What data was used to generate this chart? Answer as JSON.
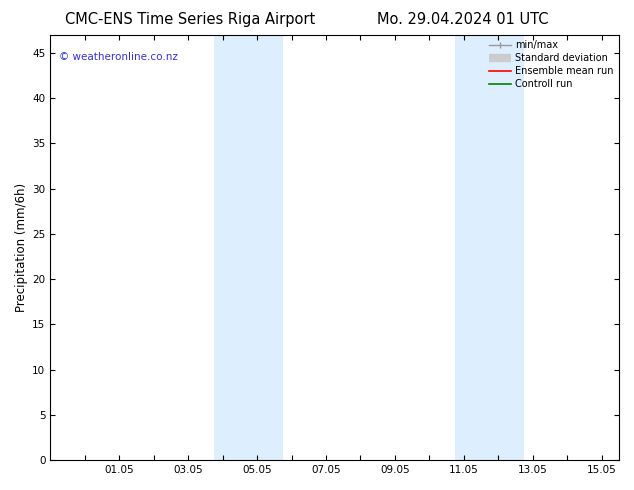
{
  "title_left": "CMC-ENS Time Series Riga Airport",
  "title_right": "Mo. 29.04.2024 01 UTC",
  "ylabel": "Precipitation (mm/6h)",
  "watermark": "© weatheronline.co.nz",
  "watermark_color": "#3333cc",
  "xlim_left": 29.0,
  "xlim_right": 45.5,
  "ylim_bottom": 0,
  "ylim_top": 47,
  "yticks": [
    0,
    5,
    10,
    15,
    20,
    25,
    30,
    35,
    40,
    45
  ],
  "xtick_positions": [
    30,
    31,
    32,
    33,
    34,
    35,
    36,
    37,
    38,
    39,
    40,
    41,
    42,
    43,
    44,
    45
  ],
  "xtick_labels": [
    "",
    "01.05",
    "",
    "03.05",
    "",
    "05.05",
    "",
    "07.05",
    "",
    "09.05",
    "",
    "11.05",
    "",
    "13.05",
    "",
    "15.05"
  ],
  "shaded_bands": [
    {
      "xmin": 33.75,
      "xmax": 35.75,
      "color": "#ddeeff"
    },
    {
      "xmin": 40.75,
      "xmax": 42.75,
      "color": "#ddeeff"
    }
  ],
  "bg_color": "#ffffff",
  "plot_bg_color": "#ffffff",
  "tick_label_fontsize": 7.5,
  "axis_label_fontsize": 8.5,
  "title_fontsize": 10.5
}
